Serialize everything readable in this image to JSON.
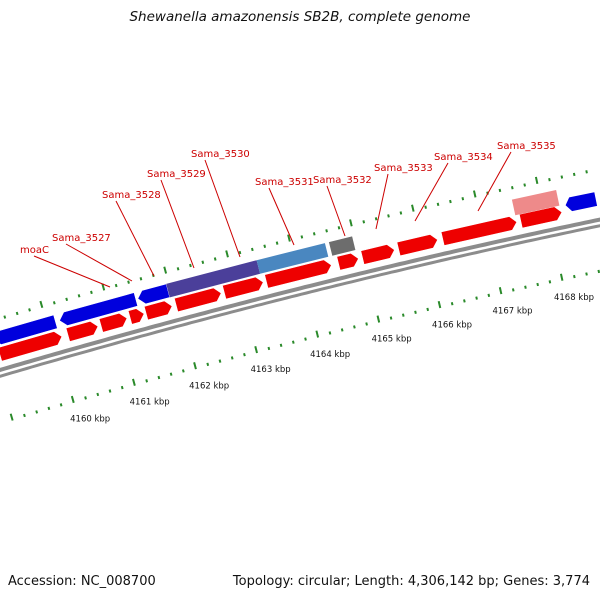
{
  "title": "Shewanella amazonensis SB2B, complete genome",
  "footer": {
    "accession": "Accession: NC_008700",
    "summary": "Topology: circular; Length: 4,306,142 bp; Genes: 3,774"
  },
  "colors": {
    "forward_gene": "#ee0000",
    "reverse_gene": "#0000dd",
    "highlight_purple": "#4b3f9a",
    "highlight_steel": "#4a87c0",
    "pseudo_gray": "#6d6d6d",
    "faded_pink": "#ee8a8a",
    "backbone": "#8c8c8c",
    "tick": "#2a8a2a",
    "label": "#cc0000"
  },
  "scale_labels": [
    "4160 kbp",
    "4161 kbp",
    "4162 kbp",
    "4163 kbp",
    "4164 kbp",
    "4165 kbp",
    "4166 kbp",
    "4167 kbp",
    "4168 kbp"
  ],
  "gene_labels": [
    "moaC",
    "Sama_3527",
    "Sama_3528",
    "Sama_3529",
    "Sama_3530",
    "Sama_3531",
    "Sama_3532",
    "Sama_3533",
    "Sama_3534",
    "Sama_3535"
  ]
}
